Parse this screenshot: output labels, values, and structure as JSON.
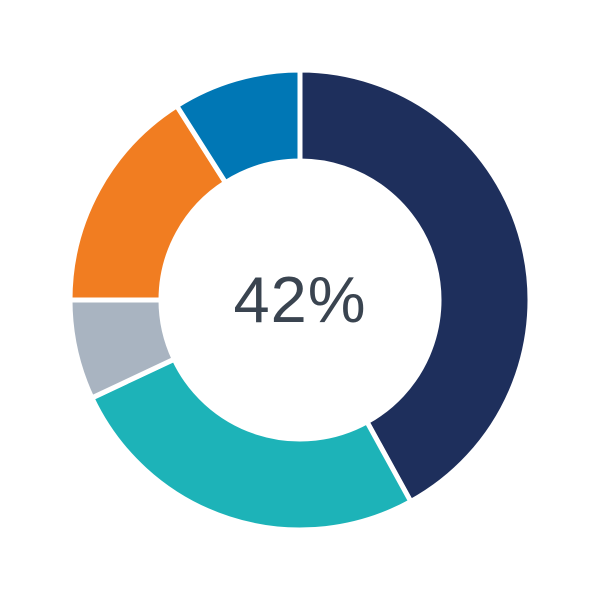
{
  "chart_data": {
    "type": "pie",
    "variant": "donut",
    "title": "",
    "legend": "none",
    "center_label": "42%",
    "center_label_color": "#3A4450",
    "start_angle_deg": 0,
    "clockwise": true,
    "separator_color": "#ffffff",
    "segments": [
      {
        "name": "navy",
        "value": 42,
        "color": "#1E2F5C"
      },
      {
        "name": "teal",
        "value": 26,
        "color": "#1DB3B8"
      },
      {
        "name": "gray",
        "value": 7,
        "color": "#A9B4C1"
      },
      {
        "name": "orange",
        "value": 16,
        "color": "#F17D21"
      },
      {
        "name": "blue",
        "value": 9,
        "color": "#0077B5"
      }
    ]
  }
}
